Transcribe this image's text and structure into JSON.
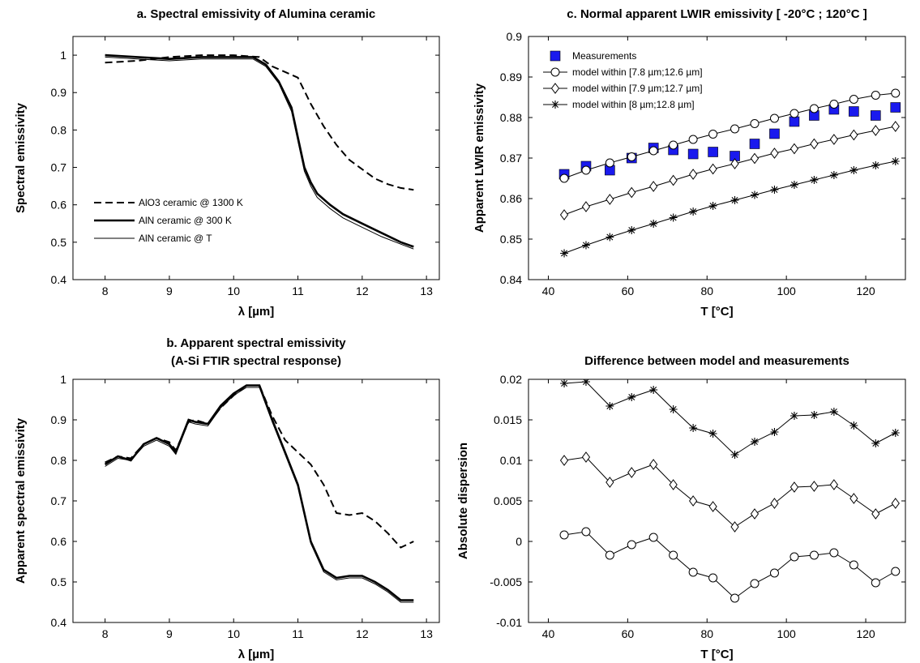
{
  "chart_data": [
    {
      "type": "line",
      "title": "a. Spectral emissivity of Alumina ceramic",
      "xlabel": "λ [µm]",
      "ylabel": "Spectral emissivity",
      "xlim": [
        7.5,
        13.2
      ],
      "ylim": [
        0.4,
        1.05
      ],
      "xticks": [
        "8",
        "9",
        "10",
        "11",
        "12",
        "13"
      ],
      "yticks": [
        "0.4",
        "0.5",
        "0.6",
        "0.7",
        "0.8",
        "0.9",
        "1"
      ],
      "legend_position": "bottom-left",
      "series": [
        {
          "name": "AlO3 ceramic @ 1300 K",
          "style": "dashed",
          "x": [
            8.0,
            8.5,
            9.0,
            9.5,
            10.0,
            10.4,
            10.6,
            10.8,
            11.0,
            11.2,
            11.4,
            11.6,
            11.8,
            12.0,
            12.2,
            12.4,
            12.6,
            12.8
          ],
          "y": [
            0.98,
            0.985,
            0.995,
            1.0,
            1.0,
            0.995,
            0.97,
            0.955,
            0.94,
            0.87,
            0.81,
            0.76,
            0.72,
            0.695,
            0.67,
            0.655,
            0.645,
            0.64
          ]
        },
        {
          "name": "AlN ceramic @ 300 K",
          "style": "thick",
          "x": [
            8.0,
            8.5,
            9.0,
            9.5,
            10.0,
            10.3,
            10.5,
            10.7,
            10.9,
            11.0,
            11.1,
            11.2,
            11.3,
            11.5,
            11.7,
            12.0,
            12.3,
            12.6,
            12.8
          ],
          "y": [
            1.0,
            0.995,
            0.99,
            0.995,
            0.995,
            0.995,
            0.975,
            0.93,
            0.86,
            0.78,
            0.7,
            0.66,
            0.63,
            0.6,
            0.575,
            0.55,
            0.525,
            0.5,
            0.488
          ]
        },
        {
          "name": "AlN ceramic @ T",
          "style": "thin",
          "x": [
            8.0,
            8.5,
            9.0,
            9.5,
            10.0,
            10.3,
            10.5,
            10.7,
            10.9,
            11.0,
            11.1,
            11.2,
            11.3,
            11.5,
            11.7,
            12.0,
            12.3,
            12.6,
            12.8
          ],
          "y": [
            0.995,
            0.99,
            0.985,
            0.99,
            0.99,
            0.99,
            0.97,
            0.925,
            0.85,
            0.77,
            0.69,
            0.65,
            0.62,
            0.59,
            0.565,
            0.54,
            0.515,
            0.495,
            0.482
          ]
        }
      ]
    },
    {
      "type": "line",
      "title": "b. Apparent spectral emissivity",
      "subtitle": "(A-Si FTIR spectral response)",
      "xlabel": "λ [µm]",
      "ylabel": "Apparent spectral emissivity",
      "xlim": [
        7.5,
        13.2
      ],
      "ylim": [
        0.4,
        1.0
      ],
      "xticks": [
        "8",
        "9",
        "10",
        "11",
        "12",
        "13"
      ],
      "yticks": [
        "0.4",
        "0.5",
        "0.6",
        "0.7",
        "0.8",
        "0.9",
        "1"
      ],
      "series": [
        {
          "name": "AlO3 ceramic @ 1300 K",
          "style": "dashed",
          "x": [
            8.0,
            8.2,
            8.4,
            8.6,
            8.8,
            9.0,
            9.1,
            9.3,
            9.4,
            9.6,
            9.8,
            10.0,
            10.2,
            10.4,
            10.6,
            10.8,
            11.0,
            11.2,
            11.4,
            11.6,
            11.8,
            12.0,
            12.2,
            12.4,
            12.6,
            12.8
          ],
          "y": [
            0.795,
            0.81,
            0.805,
            0.84,
            0.855,
            0.845,
            0.825,
            0.895,
            0.9,
            0.89,
            0.93,
            0.96,
            0.985,
            0.985,
            0.91,
            0.85,
            0.82,
            0.79,
            0.74,
            0.67,
            0.665,
            0.67,
            0.65,
            0.62,
            0.585,
            0.6
          ]
        },
        {
          "name": "AlN ceramic @ 300 K",
          "style": "thick",
          "x": [
            8.0,
            8.2,
            8.4,
            8.6,
            8.8,
            9.0,
            9.1,
            9.3,
            9.4,
            9.6,
            9.8,
            10.0,
            10.2,
            10.4,
            10.6,
            10.8,
            11.0,
            11.2,
            11.4,
            11.6,
            11.8,
            12.0,
            12.2,
            12.4,
            12.6,
            12.8
          ],
          "y": [
            0.79,
            0.81,
            0.8,
            0.84,
            0.855,
            0.84,
            0.82,
            0.9,
            0.895,
            0.89,
            0.935,
            0.965,
            0.985,
            0.985,
            0.9,
            0.82,
            0.74,
            0.6,
            0.53,
            0.51,
            0.515,
            0.515,
            0.5,
            0.48,
            0.455,
            0.455
          ]
        },
        {
          "name": "AlN ceramic @ T",
          "style": "thin",
          "x": [
            8.0,
            8.2,
            8.4,
            8.6,
            8.8,
            9.0,
            9.1,
            9.3,
            9.4,
            9.6,
            9.8,
            10.0,
            10.2,
            10.4,
            10.6,
            10.8,
            11.0,
            11.2,
            11.4,
            11.6,
            11.8,
            12.0,
            12.2,
            12.4,
            12.6,
            12.8
          ],
          "y": [
            0.785,
            0.805,
            0.8,
            0.835,
            0.85,
            0.835,
            0.815,
            0.895,
            0.89,
            0.885,
            0.93,
            0.96,
            0.98,
            0.98,
            0.895,
            0.815,
            0.735,
            0.595,
            0.525,
            0.505,
            0.51,
            0.51,
            0.495,
            0.475,
            0.45,
            0.45
          ]
        }
      ]
    },
    {
      "type": "line",
      "title": "c. Normal apparent LWIR emissivity [ -20°C ; 120°C ]",
      "xlabel": "T [°C]",
      "ylabel": "Apparent LWIR emissivity",
      "xlim": [
        35,
        130
      ],
      "ylim": [
        0.84,
        0.9
      ],
      "xticks": [
        "40",
        "60",
        "80",
        "100",
        "120"
      ],
      "yticks": [
        "0.84",
        "0.85",
        "0.86",
        "0.87",
        "0.88",
        "0.89",
        "0.9"
      ],
      "legend_position": "top-left",
      "x": [
        44,
        49.5,
        55.5,
        61,
        66.5,
        71.5,
        76.5,
        81.5,
        87,
        92,
        97,
        102,
        107,
        112,
        117,
        122.5,
        127.5
      ],
      "series": [
        {
          "name": "Measurements",
          "marker": "square",
          "y": [
            0.866,
            0.868,
            0.867,
            0.87,
            0.8725,
            0.872,
            0.871,
            0.8715,
            0.8705,
            0.8735,
            0.876,
            0.879,
            0.8805,
            0.882,
            0.8815,
            0.8805,
            0.8825
          ]
        },
        {
          "name": "model within [7.8 µm;12.6 µm]",
          "marker": "circle",
          "y": [
            0.865,
            0.867,
            0.8688,
            0.8703,
            0.8718,
            0.8732,
            0.8746,
            0.8759,
            0.8772,
            0.8785,
            0.8798,
            0.881,
            0.8822,
            0.8833,
            0.8845,
            0.8855,
            0.886
          ]
        },
        {
          "name": "model within [7.9 µm;12.7 µm]",
          "marker": "diamond",
          "y": [
            0.856,
            0.858,
            0.8598,
            0.8615,
            0.863,
            0.8645,
            0.866,
            0.8673,
            0.8686,
            0.8699,
            0.8712,
            0.8723,
            0.8735,
            0.8746,
            0.8757,
            0.8768,
            0.8778
          ]
        },
        {
          "name": "model within [8 µm;12.8 µm]",
          "marker": "star",
          "y": [
            0.8465,
            0.8485,
            0.8505,
            0.8522,
            0.8538,
            0.8553,
            0.8568,
            0.8582,
            0.8596,
            0.8609,
            0.8622,
            0.8634,
            0.8646,
            0.8658,
            0.867,
            0.8682,
            0.8692
          ]
        }
      ]
    },
    {
      "type": "line",
      "title": "Difference between model and measurements",
      "xlabel": "T [°C]",
      "ylabel": "Absolute dispersion",
      "xlim": [
        35,
        130
      ],
      "ylim": [
        -0.01,
        0.02
      ],
      "xticks": [
        "40",
        "60",
        "80",
        "100",
        "120"
      ],
      "yticks": [
        "-0.01",
        "-0.005",
        "0",
        "0.005",
        "0.01",
        "0.015",
        "0.02"
      ],
      "x": [
        44,
        49.5,
        55.5,
        61,
        66.5,
        71.5,
        76.5,
        81.5,
        87,
        92,
        97,
        102,
        107,
        112,
        117,
        122.5,
        127.5
      ],
      "series": [
        {
          "marker": "star",
          "y": [
            0.0195,
            0.0197,
            0.0167,
            0.0178,
            0.0187,
            0.0163,
            0.014,
            0.0133,
            0.0107,
            0.0123,
            0.0135,
            0.0155,
            0.0156,
            0.016,
            0.0143,
            0.0121,
            0.0134
          ]
        },
        {
          "marker": "diamond",
          "y": [
            0.01,
            0.0104,
            0.0073,
            0.0085,
            0.0095,
            0.007,
            0.005,
            0.0043,
            0.0018,
            0.0034,
            0.0047,
            0.0067,
            0.0068,
            0.007,
            0.0053,
            0.0034,
            0.0047
          ]
        },
        {
          "marker": "circle",
          "y": [
            0.0008,
            0.0012,
            -0.0017,
            -0.0004,
            0.0005,
            -0.0017,
            -0.0038,
            -0.0045,
            -0.007,
            -0.0052,
            -0.0039,
            -0.0019,
            -0.0017,
            -0.0014,
            -0.0029,
            -0.0051,
            -0.0037
          ]
        }
      ]
    }
  ]
}
